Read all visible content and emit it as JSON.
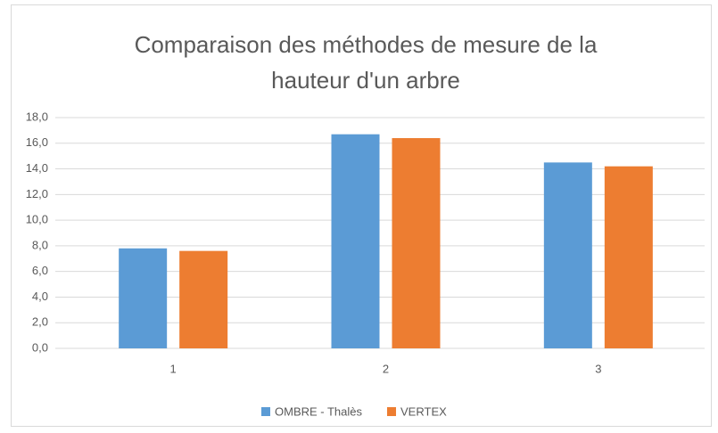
{
  "chart_data": {
    "type": "bar",
    "title": "Comparaison des méthodes de mesure de la hauteur d'un arbre",
    "categories": [
      "1",
      "2",
      "3"
    ],
    "series": [
      {
        "name": "OMBRE - Thalès",
        "color": "#5b9bd5",
        "values": [
          7.8,
          16.7,
          14.5
        ]
      },
      {
        "name": "VERTEX",
        "color": "#ed7d31",
        "values": [
          7.6,
          16.4,
          14.2
        ]
      }
    ],
    "ylim": [
      0,
      18
    ],
    "yticks": [
      {
        "value": 0,
        "label": "0,0"
      },
      {
        "value": 2,
        "label": "2,0"
      },
      {
        "value": 4,
        "label": "4,0"
      },
      {
        "value": 6,
        "label": "6,0"
      },
      {
        "value": 8,
        "label": "8,0"
      },
      {
        "value": 10,
        "label": "10,0"
      },
      {
        "value": 12,
        "label": "12,0"
      },
      {
        "value": 14,
        "label": "14,0"
      },
      {
        "value": 16,
        "label": "16,0"
      },
      {
        "value": 18,
        "label": "18,0"
      }
    ],
    "grid": true,
    "legend": "bottom"
  }
}
